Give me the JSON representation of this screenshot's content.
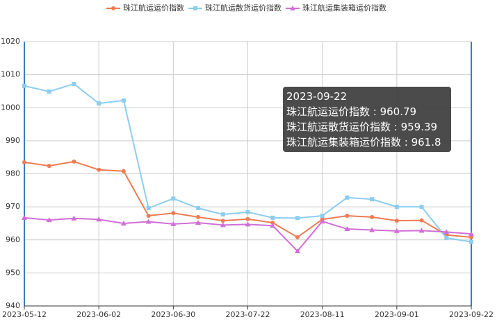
{
  "chart_data": {
    "type": "line",
    "categories": [
      "2023-05-12",
      null,
      null,
      "2023-06-02",
      null,
      null,
      "2023-06-30",
      null,
      null,
      "2023-07-22",
      null,
      null,
      "2023-08-11",
      null,
      null,
      "2023-09-01",
      null,
      null,
      "2023-09-22"
    ],
    "series": [
      {
        "name": "珠江航运运价指数",
        "color": "#ee7b52",
        "marker": "circle",
        "values": [
          983.5,
          982.4,
          983.7,
          981.2,
          980.8,
          967.3,
          968.1,
          966.9,
          965.8,
          966.3,
          965.2,
          960.8,
          966.2,
          967.3,
          966.9,
          965.8,
          965.9,
          961.5,
          960.79
        ]
      },
      {
        "name": "珠江航运散货运价指数",
        "color": "#8ccdf0",
        "marker": "square",
        "values": [
          1006.6,
          1004.9,
          1007.2,
          1001.3,
          1002.2,
          969.6,
          972.5,
          969.6,
          967.7,
          968.4,
          966.7,
          966.6,
          967.3,
          972.8,
          972.3,
          970.0,
          970.0,
          960.6,
          959.39
        ]
      },
      {
        "name": "珠江航运集装箱运价指数",
        "color": "#d06ed6",
        "marker": "triangle",
        "values": [
          966.7,
          966.0,
          966.5,
          966.2,
          965.0,
          965.5,
          964.8,
          965.2,
          964.5,
          964.7,
          964.3,
          956.6,
          965.6,
          963.3,
          963.0,
          962.7,
          962.8,
          962.4,
          961.8
        ]
      }
    ],
    "ylim": [
      940,
      1020
    ],
    "yticks": [
      940,
      950,
      960,
      970,
      980,
      990,
      1000,
      1010,
      1020
    ],
    "grid": true,
    "legend": "top",
    "tooltip": {
      "title": "2023-09-22",
      "rows": [
        "珠江航运运价指数 : 960.79",
        "珠江航运散货运价指数 : 959.39",
        "珠江航运集装箱运价指数 : 961.8"
      ]
    }
  }
}
